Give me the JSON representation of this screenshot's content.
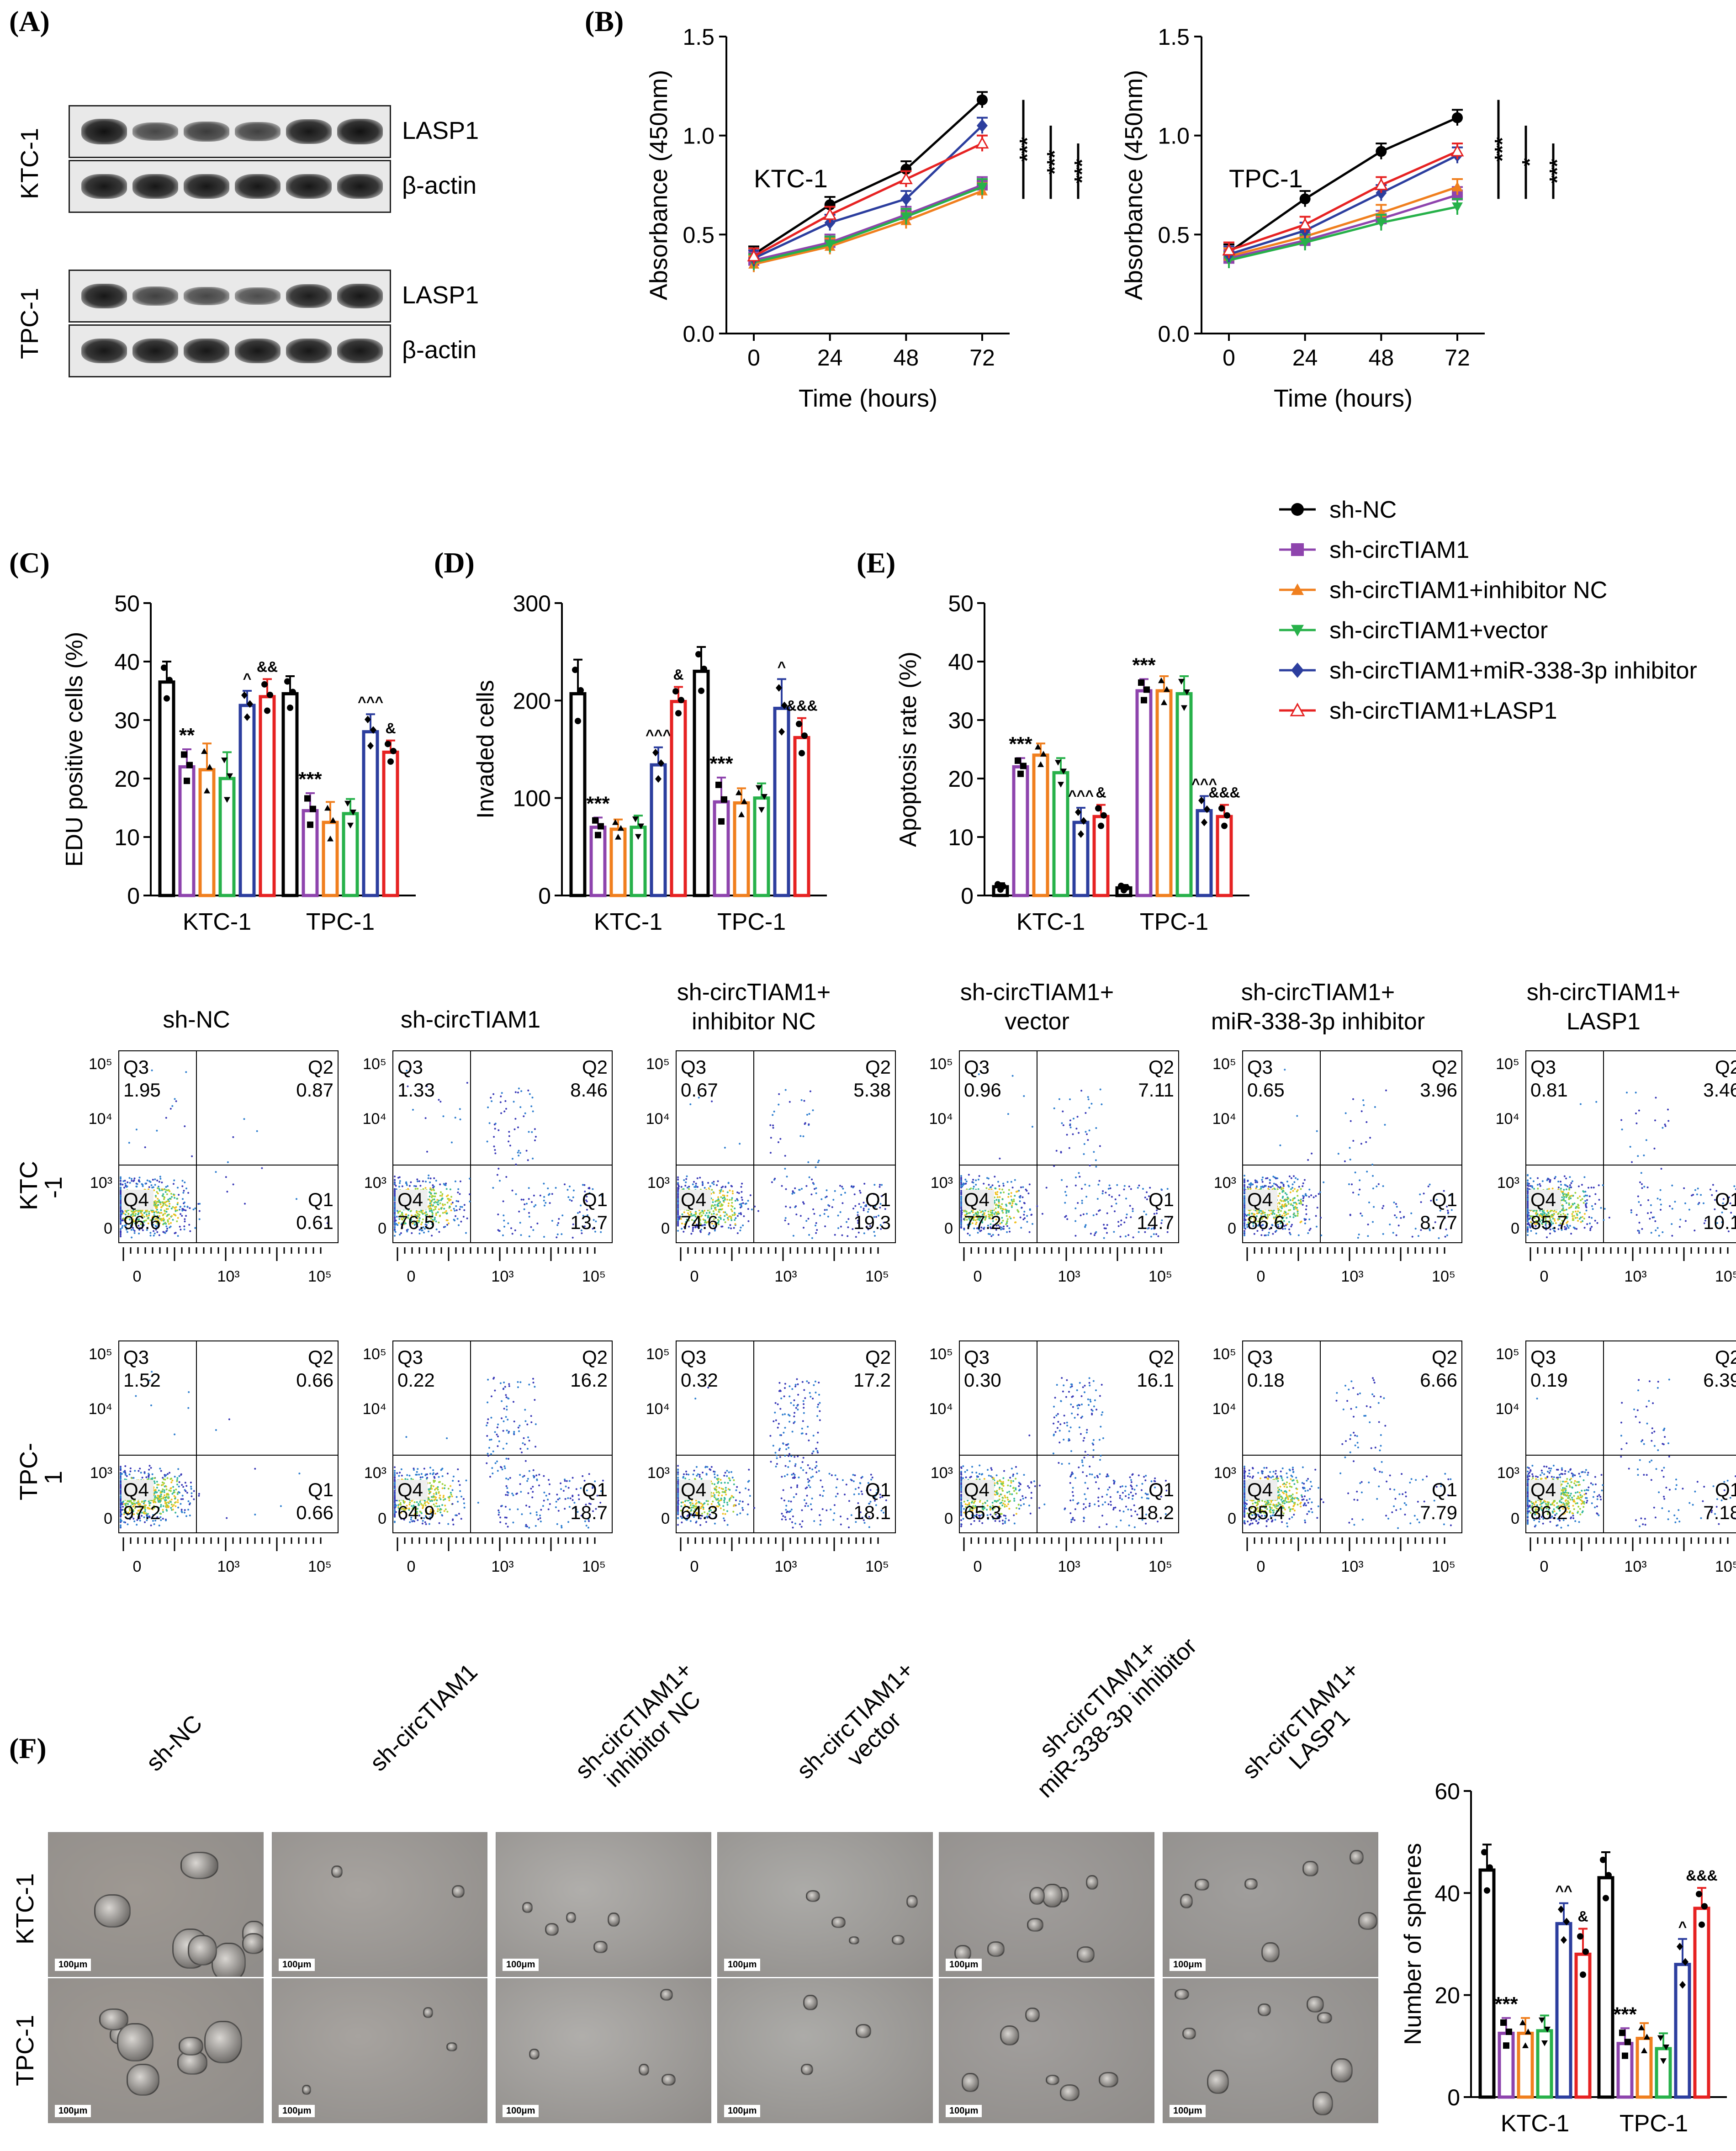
{
  "panels": {
    "a": "(A)",
    "b": "(B)",
    "c": "(C)",
    "d": "(D)",
    "e": "(E)",
    "f": "(F)"
  },
  "western": {
    "rows": [
      "KTC-1",
      "TPC-1"
    ],
    "labels": [
      "LASP1",
      "β-actin",
      "LASP1",
      "β-actin"
    ],
    "intensity": [
      [
        1.0,
        0.55,
        0.65,
        0.6,
        0.95,
        1.0
      ],
      [
        0.95,
        0.95,
        0.95,
        0.95,
        0.95,
        0.95
      ],
      [
        0.95,
        0.6,
        0.55,
        0.5,
        0.9,
        0.95
      ],
      [
        0.95,
        0.95,
        0.95,
        0.95,
        0.95,
        0.95
      ]
    ]
  },
  "legend": {
    "items": [
      {
        "name": "sh-NC",
        "color": "#000000",
        "marker": "circle"
      },
      {
        "name": "sh-circTIAM1",
        "color": "#8e44ad",
        "marker": "square"
      },
      {
        "name": "sh-circTIAM1+inhibitor NC",
        "color": "#f07f1e",
        "marker": "triangle"
      },
      {
        "name": "sh-circTIAM1+vector",
        "color": "#27b14a",
        "marker": "triangle-down"
      },
      {
        "name": "sh-circTIAM1+miR-338-3p inhibitor",
        "color": "#2c3e9e",
        "marker": "diamond"
      },
      {
        "name": "sh-circTIAM1+LASP1",
        "color": "#e62222",
        "marker": "triangle-open"
      }
    ]
  },
  "chart_data": [
    {
      "id": "B1",
      "type": "line",
      "title": "KTC-1",
      "xlabel": "Time (hours)",
      "ylabel": "Absorbance (450nm)",
      "x": [
        0,
        24,
        48,
        72
      ],
      "ylim": [
        0,
        1.5
      ],
      "yticks": [
        "0.0",
        "0.5",
        "1.0",
        "1.5"
      ],
      "series": [
        {
          "name": "sh-NC",
          "values": [
            0.4,
            0.65,
            0.83,
            1.18
          ]
        },
        {
          "name": "sh-circTIAM1",
          "values": [
            0.37,
            0.46,
            0.6,
            0.75
          ]
        },
        {
          "name": "sh-circTIAM1+inhibitor NC",
          "values": [
            0.35,
            0.44,
            0.57,
            0.72
          ]
        },
        {
          "name": "sh-circTIAM1+vector",
          "values": [
            0.36,
            0.45,
            0.59,
            0.74
          ]
        },
        {
          "name": "sh-circTIAM1+miR-338-3p inhibitor",
          "values": [
            0.38,
            0.56,
            0.68,
            1.05
          ]
        },
        {
          "name": "sh-circTIAM1+LASP1",
          "values": [
            0.39,
            0.6,
            0.78,
            0.96
          ]
        }
      ],
      "sig": [
        "***",
        "***",
        "***"
      ]
    },
    {
      "id": "B2",
      "type": "line",
      "title": "TPC-1",
      "xlabel": "Time (hours)",
      "ylabel": "Absorbance (450nm)",
      "x": [
        0,
        24,
        48,
        72
      ],
      "ylim": [
        0,
        1.5
      ],
      "yticks": [
        "0.0",
        "0.5",
        "1.0",
        "1.5"
      ],
      "series": [
        {
          "name": "sh-NC",
          "values": [
            0.41,
            0.68,
            0.92,
            1.09
          ]
        },
        {
          "name": "sh-circTIAM1",
          "values": [
            0.38,
            0.47,
            0.58,
            0.7
          ]
        },
        {
          "name": "sh-circTIAM1+inhibitor NC",
          "values": [
            0.39,
            0.49,
            0.61,
            0.74
          ]
        },
        {
          "name": "sh-circTIAM1+vector",
          "values": [
            0.37,
            0.46,
            0.56,
            0.64
          ]
        },
        {
          "name": "sh-circTIAM1+miR-338-3p inhibitor",
          "values": [
            0.4,
            0.52,
            0.71,
            0.9
          ]
        },
        {
          "name": "sh-circTIAM1+LASP1",
          "values": [
            0.42,
            0.55,
            0.75,
            0.92
          ]
        }
      ],
      "sig": [
        "***",
        "*",
        "***"
      ]
    },
    {
      "id": "C",
      "type": "bar",
      "ylabel": "EDU positive cells (%)",
      "categories": [
        "KTC-1",
        "TPC-1"
      ],
      "ylim": [
        0,
        50
      ],
      "yticks": [
        "0",
        "10",
        "20",
        "30",
        "40",
        "50"
      ],
      "values": [
        [
          36.5,
          22,
          21.5,
          20,
          32.5,
          34
        ],
        [
          34.5,
          14.5,
          12.5,
          14,
          28,
          24.5
        ]
      ],
      "errors": [
        [
          3.5,
          3,
          4.5,
          4.5,
          2.5,
          3
        ],
        [
          3,
          3,
          3.5,
          2.5,
          3,
          2
        ]
      ],
      "annotations": [
        [
          "",
          "**",
          "",
          "",
          "^",
          "&&"
        ],
        [
          "",
          "***",
          "",
          "",
          "^^^",
          "&"
        ]
      ]
    },
    {
      "id": "D",
      "type": "bar",
      "ylabel": "Invaded cells",
      "categories": [
        "KTC-1",
        "TPC-1"
      ],
      "ylim": [
        0,
        300
      ],
      "yticks": [
        "0",
        "100",
        "200",
        "300"
      ],
      "values": [
        [
          207,
          70,
          68,
          70,
          134,
          199
        ],
        [
          230,
          96,
          95,
          100,
          192,
          162
        ]
      ],
      "errors": [
        [
          35,
          10,
          10,
          12,
          18,
          15
        ],
        [
          25,
          25,
          15,
          15,
          30,
          20
        ]
      ],
      "annotations": [
        [
          "",
          "***",
          "",
          "",
          "^^^",
          "&"
        ],
        [
          "",
          "***",
          "",
          "",
          "^",
          "&&&"
        ]
      ]
    },
    {
      "id": "E",
      "type": "bar",
      "ylabel": "Apoptosis rate (%)",
      "categories": [
        "KTC-1",
        "TPC-1"
      ],
      "ylim": [
        0,
        50
      ],
      "yticks": [
        "0",
        "10",
        "20",
        "30",
        "40",
        "50"
      ],
      "values": [
        [
          1.5,
          22,
          24,
          21,
          12.5,
          13.5
        ],
        [
          1.3,
          35,
          35,
          34.5,
          14.5,
          13.5
        ]
      ],
      "errors": [
        [
          0.6,
          1.5,
          2,
          2.5,
          2.5,
          2
        ],
        [
          0.5,
          2,
          2.5,
          3,
          2.5,
          2
        ]
      ],
      "annotations": [
        [
          "",
          "***",
          "",
          "",
          "^^^",
          "&"
        ],
        [
          "",
          "***",
          "",
          "",
          "^^^",
          "&&&"
        ]
      ]
    },
    {
      "id": "F",
      "type": "bar",
      "ylabel": "Number of spheres",
      "categories": [
        "KTC-1",
        "TPC-1"
      ],
      "ylim": [
        0,
        60
      ],
      "yticks": [
        "0",
        "20",
        "40",
        "60"
      ],
      "values": [
        [
          44.5,
          12.5,
          12.5,
          13,
          34,
          28
        ],
        [
          43,
          10.5,
          11.5,
          9.5,
          26,
          37
        ]
      ],
      "errors": [
        [
          5,
          3,
          3,
          3,
          4,
          5
        ],
        [
          5,
          3,
          3,
          3,
          5,
          4
        ]
      ],
      "annotations": [
        [
          "",
          "***",
          "",
          "",
          "^^",
          "&"
        ],
        [
          "",
          "***",
          "",
          "",
          "^",
          "&&&"
        ]
      ]
    }
  ],
  "flow": {
    "titles": [
      "sh-NC",
      "sh-circTIAM1",
      "sh-circTIAM1+\ninhibitor NC",
      "sh-circTIAM1+\nvector",
      "sh-circTIAM1+\nmiR-338-3p inhibitor",
      "sh-circTIAM1+\nLASP1"
    ],
    "rows": [
      "KTC\n-1",
      "TPC-\n1"
    ],
    "quadrant_labels": [
      "Q1",
      "Q2",
      "Q3",
      "Q4"
    ],
    "ticks": {
      "y": [
        "10⁵",
        "10⁴",
        "10³",
        "0"
      ],
      "x": [
        "0",
        "10³",
        "10⁵"
      ]
    },
    "data": [
      [
        {
          "q1": "0.61",
          "q2": "0.87",
          "q3": "1.95",
          "q4": "96.6"
        },
        {
          "q1": "13.7",
          "q2": "8.46",
          "q3": "1.33",
          "q4": "76.5"
        },
        {
          "q1": "19.3",
          "q2": "5.38",
          "q3": "0.67",
          "q4": "74.6"
        },
        {
          "q1": "14.7",
          "q2": "7.11",
          "q3": "0.96",
          "q4": "77.2"
        },
        {
          "q1": "8.77",
          "q2": "3.96",
          "q3": "0.65",
          "q4": "86.6"
        },
        {
          "q1": "10.1",
          "q2": "3.46",
          "q3": "0.81",
          "q4": "85.7"
        }
      ],
      [
        {
          "q1": "0.66",
          "q2": "0.66",
          "q3": "1.52",
          "q4": "97.2"
        },
        {
          "q1": "18.7",
          "q2": "16.2",
          "q3": "0.22",
          "q4": "64.9"
        },
        {
          "q1": "18.1",
          "q2": "17.2",
          "q3": "0.32",
          "q4": "64.3"
        },
        {
          "q1": "18.2",
          "q2": "16.1",
          "q3": "0.30",
          "q4": "65.3"
        },
        {
          "q1": "7.79",
          "q2": "6.66",
          "q3": "0.18",
          "q4": "85.4"
        },
        {
          "q1": "7.18",
          "q2": "6.39",
          "q3": "0.19",
          "q4": "86.2"
        }
      ]
    ]
  },
  "spheres": {
    "titles": [
      "sh-NC",
      "sh-circTIAM1",
      "sh-circTIAM1+\ninhibitor NC",
      "sh-circTIAM1+\nvector",
      "sh-circTIAM1+\nmiR-338-3p inhibitor",
      "sh-circTIAM1+\nLASP1"
    ],
    "rows": [
      "KTC-1",
      "TPC-1"
    ],
    "scale_bar": "100μm"
  }
}
